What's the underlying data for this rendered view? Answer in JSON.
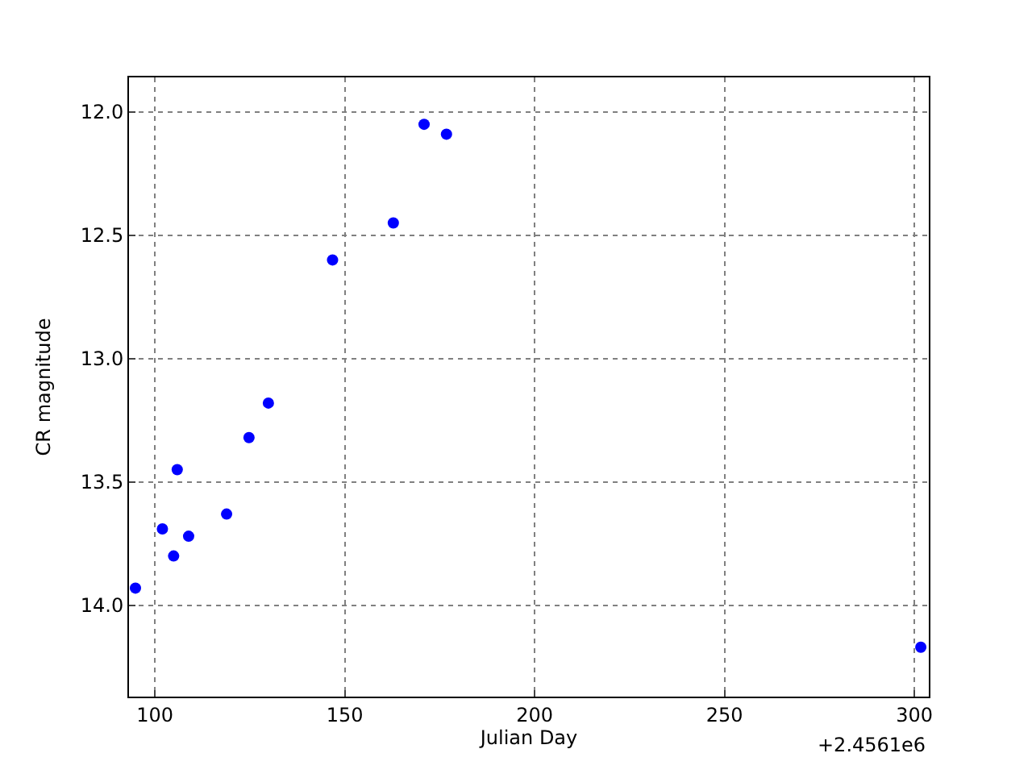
{
  "chart_data": {
    "type": "scatter",
    "xlabel": "Julian Day",
    "ylabel": "CR magnitude",
    "annotations": [
      "+2.4561e6"
    ],
    "x": [
      94.9,
      102.0,
      104.95,
      105.9,
      108.9,
      118.9,
      124.8,
      129.9,
      146.8,
      162.8,
      170.9,
      176.8,
      301.7
    ],
    "series": [
      {
        "color": "#0000ff",
        "values": [
          13.93,
          13.69,
          13.8,
          13.45,
          13.72,
          13.63,
          13.32,
          13.18,
          12.6,
          12.45,
          12.05,
          12.09,
          14.17
        ]
      }
    ],
    "xlim": [
      93.2,
      303.8
    ],
    "xticks": [
      100,
      150,
      200,
      250,
      300
    ],
    "ylim": [
      14.37,
      11.86
    ],
    "yticks": [
      {
        "value": 12.0,
        "label": "12.0"
      },
      {
        "value": 12.5,
        "label": "12.5"
      },
      {
        "value": 13.0,
        "label": "13.0"
      },
      {
        "value": 13.5,
        "label": "13.5"
      },
      {
        "value": 14.0,
        "label": "14.0"
      }
    ],
    "grid": true,
    "marker": "circle"
  }
}
